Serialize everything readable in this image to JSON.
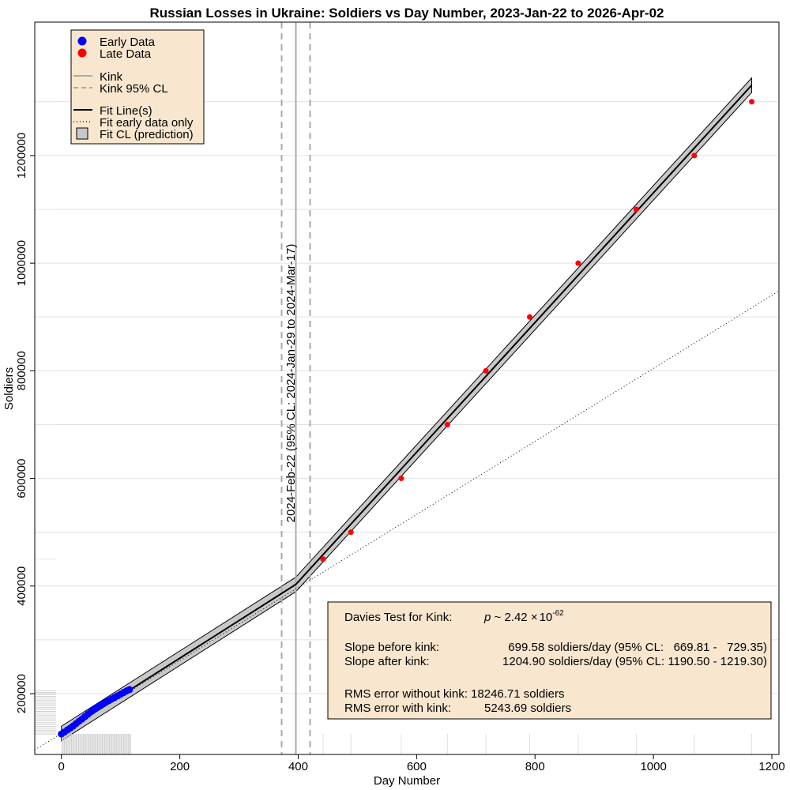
{
  "chart_data": {
    "type": "scatter",
    "title": "Russian Losses in Ukraine: Soldiers vs Day Number, 2023-Jan-22 to 2026-Apr-02",
    "xlabel": "Day Number",
    "ylabel": "Soldiers",
    "xlim": [
      -45,
      1212
    ],
    "ylim": [
      87000,
      1448000
    ],
    "x_ticks": [
      0,
      200,
      400,
      600,
      800,
      1000,
      1200
    ],
    "x_tick_labels": [
      "0",
      "200",
      "400",
      "600",
      "800",
      "1000",
      "1200"
    ],
    "y_ticks": [
      200000,
      400000,
      600000,
      800000,
      1000000,
      1200000
    ],
    "y_tick_labels": [
      "200000",
      "400000",
      "600000",
      "800000",
      "1000000",
      "1200000"
    ],
    "series": [
      {
        "name": "Early Data",
        "color": "#0000ff",
        "x": [
          0,
          5,
          10,
          15,
          20,
          25,
          30,
          35,
          40,
          45,
          50,
          55,
          60,
          65,
          70,
          75,
          80,
          85,
          90,
          95,
          100,
          105,
          110,
          115
        ],
        "y": [
          125000,
          128500,
          132500,
          136000,
          140000,
          144500,
          149000,
          153000,
          157500,
          162000,
          166500,
          170500,
          174500,
          178000,
          181000,
          184000,
          187000,
          190000,
          193000,
          196000,
          199000,
          202000,
          205000,
          207500
        ]
      },
      {
        "name": "Late Data",
        "color": "#ff0000",
        "x": [
          442,
          489,
          574,
          652,
          717,
          791,
          873,
          971,
          1069,
          1166
        ],
        "y": [
          450000,
          500000,
          600000,
          700000,
          800000,
          900000,
          1000000,
          1100000,
          1200000,
          1300000
        ]
      }
    ],
    "fit": {
      "kink_day": 396,
      "kink_ci": [
        372,
        420
      ],
      "kink_y": 403000,
      "slope_before": 699.58,
      "slope_after": 1204.9,
      "ci_halfwidth": 13500,
      "early_fit_slope": 678.5,
      "early_fit_intercept": 126000,
      "x_end": 1166
    },
    "kink_label": "2024-Feb-22 (95% CL: 2024-Jan-29 to 2024-Mar-17)",
    "grid": true,
    "legend_position": "top-left",
    "legend": [
      {
        "label": "Early Data",
        "kind": "point",
        "color": "#0000ff"
      },
      {
        "label": "Late Data",
        "kind": "point",
        "color": "#ff0000"
      },
      {
        "label": "Kink",
        "kind": "solid",
        "color": "#aaaaaa"
      },
      {
        "label": "Kink 95% CL",
        "kind": "dashed",
        "color": "#aaaaaa"
      },
      {
        "label": "Fit Line(s)",
        "kind": "solid",
        "color": "#000000"
      },
      {
        "label": "Fit early data only",
        "kind": "dotted",
        "color": "#000000"
      },
      {
        "label": "Fit CL (prediction)",
        "kind": "box",
        "color": "#c8c8c8"
      }
    ],
    "stats": {
      "davies_label": "Davies Test for Kink:",
      "davies_p": "p ~ 2.42",
      "davies_times": "×",
      "davies_base": "10",
      "davies_exp": "-62",
      "slope_before_label": "Slope before kink:",
      "slope_before_text": "699.58 soldiers/day (95% CL:   669.81 -   729.35)",
      "slope_after_label": "Slope after kink:",
      "slope_after_text": "1204.90 soldiers/day (95% CL: 1190.50 - 1219.30)",
      "rms_without": "RMS error without kink: 18246.71 soldiers",
      "rms_with_label": "RMS error with kink:",
      "rms_with_value": "5243.69 soldiers"
    },
    "colors": {
      "legend_bg": "#f8e6cf",
      "band": "#c8c8c8",
      "kink_line": "#aaaaaa",
      "grid": "#e0e0e0"
    }
  }
}
